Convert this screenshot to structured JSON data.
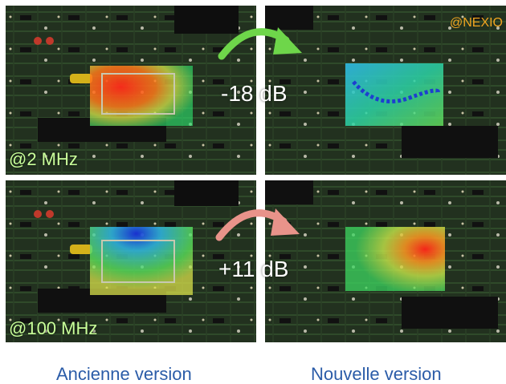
{
  "panels": [
    {
      "id": "old-2mhz",
      "label": "@2 MHz"
    },
    {
      "id": "new-2mhz",
      "label": ""
    },
    {
      "id": "old-100mhz",
      "label": "@100 MHz"
    },
    {
      "id": "new-100mhz",
      "label": ""
    }
  ],
  "annotations": {
    "delta_2mhz": "-18 dB",
    "delta_100mhz": "+11 dB",
    "watermark": "@NEXIO"
  },
  "captions": {
    "left": "Ancienne version",
    "right": "Nouvelle version"
  },
  "colors": {
    "arrow_top": "#6ed64a",
    "arrow_bottom": "#e8938a",
    "caption": "#2b5ca8",
    "watermark": "#f0a521"
  }
}
